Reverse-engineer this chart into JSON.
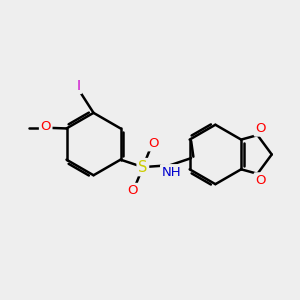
{
  "bg_color": "#eeeeee",
  "bond_color": "#000000",
  "bond_width": 1.8,
  "atom_colors": {
    "O": "#ff0000",
    "N": "#0000cd",
    "S": "#cccc00",
    "I": "#cc00cc"
  },
  "figsize": [
    3.0,
    3.0
  ],
  "dpi": 100
}
